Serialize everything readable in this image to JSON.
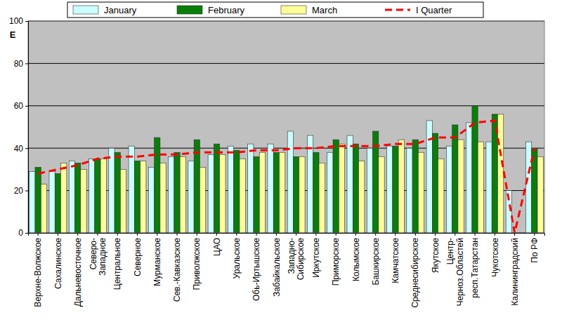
{
  "chart_data": {
    "type": "bar",
    "y_label": "E",
    "categories": [
      "Верхне-Волжское",
      "Сахалинское",
      "Дальневосточное",
      "Северо-\nЗападное",
      "Центральное",
      "Северное",
      "Мурманское",
      "Сев.-Кавказское",
      "Приволжское",
      "ЦАО",
      "Уральское",
      "Обь-Иртышское",
      "Забайкальское",
      "Западно-\nСибирское",
      "Иркутское",
      "Приморское",
      "Колымское",
      "Башкирское",
      "Камчатское",
      "Среднесибирское",
      "Якутское",
      "Центр-\nЧерноз.Областей",
      "респ.Татарстан",
      "Чукотское",
      "Калининградский",
      "По РФ"
    ],
    "series": [
      {
        "name": "January",
        "color": "#ccffff",
        "values": [
          29,
          29,
          34,
          35,
          40,
          41,
          31,
          36,
          34,
          37,
          41,
          42,
          42,
          48,
          46,
          38,
          46,
          40,
          41,
          40,
          53,
          41,
          52,
          43,
          20,
          43
        ]
      },
      {
        "name": "February",
        "color": "#0a7d0a",
        "values": [
          31,
          28,
          33,
          35,
          38,
          34,
          45,
          38,
          44,
          42,
          39,
          36,
          38,
          36,
          38,
          44,
          42,
          48,
          41,
          44,
          47,
          51,
          60,
          56,
          null,
          40
        ]
      },
      {
        "name": "March",
        "color": "#ffff99",
        "values": [
          23,
          33,
          30,
          35,
          30,
          34,
          33,
          36,
          31,
          37,
          35,
          38,
          38,
          36,
          33,
          42,
          34,
          36,
          44,
          38,
          35,
          44,
          43,
          56,
          null,
          36
        ]
      },
      {
        "name": "I Quarter",
        "type": "line",
        "line_style": "dashed",
        "color": "#ff0000",
        "values": [
          28,
          30,
          32,
          35,
          36,
          36,
          37,
          37,
          38,
          38,
          38,
          39,
          39,
          40,
          40,
          41,
          41,
          41,
          42,
          42,
          45,
          45,
          52,
          53,
          0,
          40
        ]
      }
    ],
    "ylim": [
      0,
      100
    ],
    "yticks": [
      0,
      20,
      40,
      60,
      80,
      100
    ],
    "grid": true,
    "legend": "top"
  }
}
